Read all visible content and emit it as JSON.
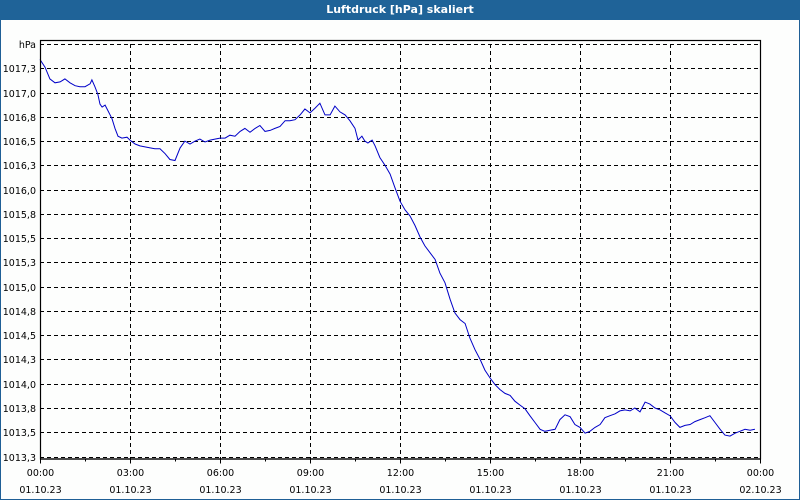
{
  "window": {
    "title": "Luftdruck [hPa] skaliert"
  },
  "colors": {
    "titlebar": "#1f6398",
    "line": "#0000c8",
    "grid": "#000000",
    "background": "#fdfefd"
  },
  "chart_data": {
    "type": "line",
    "title": "Luftdruck [hPa] skaliert",
    "xlabel": "",
    "ylabel": "hPa",
    "ylim": [
      1013.25,
      1017.5
    ],
    "xlim_hours": [
      0,
      24
    ],
    "grid": true,
    "legend": null,
    "y_ticks": [
      {
        "value": 1017.5,
        "label": "hPa"
      },
      {
        "value": 1017.25,
        "label": "1017,3"
      },
      {
        "value": 1017.0,
        "label": "1017,0"
      },
      {
        "value": 1016.75,
        "label": "1016,8"
      },
      {
        "value": 1016.5,
        "label": "1016,5"
      },
      {
        "value": 1016.25,
        "label": "1016,3"
      },
      {
        "value": 1016.0,
        "label": "1016,0"
      },
      {
        "value": 1015.75,
        "label": "1015,8"
      },
      {
        "value": 1015.5,
        "label": "1015,5"
      },
      {
        "value": 1015.25,
        "label": "1015,3"
      },
      {
        "value": 1015.0,
        "label": "1015,0"
      },
      {
        "value": 1014.75,
        "label": "1014,8"
      },
      {
        "value": 1014.5,
        "label": "1014,5"
      },
      {
        "value": 1014.25,
        "label": "1014,3"
      },
      {
        "value": 1014.0,
        "label": "1014,0"
      },
      {
        "value": 1013.75,
        "label": "1013,8"
      },
      {
        "value": 1013.5,
        "label": "1013,5"
      },
      {
        "value": 1013.25,
        "label": "1013,3"
      }
    ],
    "x_ticks": [
      {
        "hour": 0,
        "time": "00:00",
        "date": "01.10.23"
      },
      {
        "hour": 3,
        "time": "03:00",
        "date": "01.10.23"
      },
      {
        "hour": 6,
        "time": "06:00",
        "date": "01.10.23"
      },
      {
        "hour": 9,
        "time": "09:00",
        "date": "01.10.23"
      },
      {
        "hour": 12,
        "time": "12:00",
        "date": "01.10.23"
      },
      {
        "hour": 15,
        "time": "15:00",
        "date": "01.10.23"
      },
      {
        "hour": 18,
        "time": "18:00",
        "date": "01.10.23"
      },
      {
        "hour": 21,
        "time": "21:00",
        "date": "01.10.23"
      },
      {
        "hour": 24,
        "time": "00:00",
        "date": "02.10.23"
      }
    ],
    "series": [
      {
        "name": "Luftdruck",
        "unit": "hPa",
        "points": [
          [
            0.0,
            1017.34
          ],
          [
            0.17,
            1017.26
          ],
          [
            0.33,
            1017.14
          ],
          [
            0.5,
            1017.1
          ],
          [
            0.67,
            1017.11
          ],
          [
            0.83,
            1017.14
          ],
          [
            1.0,
            1017.1
          ],
          [
            1.17,
            1017.07
          ],
          [
            1.33,
            1017.06
          ],
          [
            1.5,
            1017.06
          ],
          [
            1.67,
            1017.09
          ],
          [
            1.73,
            1017.13
          ],
          [
            1.83,
            1017.06
          ],
          [
            1.93,
            1016.98
          ],
          [
            2.0,
            1016.88
          ],
          [
            2.07,
            1016.85
          ],
          [
            2.17,
            1016.87
          ],
          [
            2.27,
            1016.81
          ],
          [
            2.4,
            1016.73
          ],
          [
            2.5,
            1016.63
          ],
          [
            2.6,
            1016.55
          ],
          [
            2.73,
            1016.53
          ],
          [
            2.9,
            1016.54
          ],
          [
            3.0,
            1016.51
          ],
          [
            3.17,
            1016.47
          ],
          [
            3.33,
            1016.45
          ],
          [
            3.5,
            1016.44
          ],
          [
            3.67,
            1016.43
          ],
          [
            3.83,
            1016.42
          ],
          [
            4.0,
            1016.42
          ],
          [
            4.17,
            1016.37
          ],
          [
            4.33,
            1016.31
          ],
          [
            4.5,
            1016.3
          ],
          [
            4.67,
            1016.43
          ],
          [
            4.83,
            1016.5
          ],
          [
            5.0,
            1016.47
          ],
          [
            5.17,
            1016.5
          ],
          [
            5.33,
            1016.52
          ],
          [
            5.5,
            1016.49
          ],
          [
            5.67,
            1016.51
          ],
          [
            5.83,
            1016.52
          ],
          [
            6.0,
            1016.53
          ],
          [
            6.17,
            1016.53
          ],
          [
            6.33,
            1016.56
          ],
          [
            6.5,
            1016.55
          ],
          [
            6.67,
            1016.6
          ],
          [
            6.83,
            1016.63
          ],
          [
            7.0,
            1016.59
          ],
          [
            7.17,
            1016.63
          ],
          [
            7.33,
            1016.66
          ],
          [
            7.5,
            1016.6
          ],
          [
            7.67,
            1016.61
          ],
          [
            7.83,
            1016.63
          ],
          [
            8.0,
            1016.65
          ],
          [
            8.17,
            1016.71
          ],
          [
            8.33,
            1016.71
          ],
          [
            8.5,
            1016.72
          ],
          [
            8.67,
            1016.77
          ],
          [
            8.83,
            1016.83
          ],
          [
            9.0,
            1016.79
          ],
          [
            9.17,
            1016.84
          ],
          [
            9.33,
            1016.89
          ],
          [
            9.5,
            1016.77
          ],
          [
            9.67,
            1016.77
          ],
          [
            9.83,
            1016.86
          ],
          [
            10.0,
            1016.8
          ],
          [
            10.17,
            1016.77
          ],
          [
            10.33,
            1016.71
          ],
          [
            10.5,
            1016.63
          ],
          [
            10.6,
            1016.51
          ],
          [
            10.73,
            1016.55
          ],
          [
            10.83,
            1016.5
          ],
          [
            10.93,
            1016.48
          ],
          [
            11.07,
            1016.51
          ],
          [
            11.17,
            1016.45
          ],
          [
            11.33,
            1016.33
          ],
          [
            11.5,
            1016.25
          ],
          [
            11.67,
            1016.16
          ],
          [
            11.83,
            1016.02
          ],
          [
            12.0,
            1015.88
          ],
          [
            12.17,
            1015.79
          ],
          [
            12.33,
            1015.73
          ],
          [
            12.5,
            1015.63
          ],
          [
            12.67,
            1015.51
          ],
          [
            12.83,
            1015.42
          ],
          [
            13.0,
            1015.35
          ],
          [
            13.17,
            1015.28
          ],
          [
            13.33,
            1015.14
          ],
          [
            13.5,
            1015.04
          ],
          [
            13.67,
            1014.87
          ],
          [
            13.83,
            1014.73
          ],
          [
            14.0,
            1014.66
          ],
          [
            14.17,
            1014.62
          ],
          [
            14.33,
            1014.47
          ],
          [
            14.5,
            1014.35
          ],
          [
            14.67,
            1014.25
          ],
          [
            14.83,
            1014.14
          ],
          [
            15.0,
            1014.06
          ],
          [
            15.17,
            1013.99
          ],
          [
            15.33,
            1013.94
          ],
          [
            15.5,
            1013.9
          ],
          [
            15.67,
            1013.88
          ],
          [
            15.83,
            1013.82
          ],
          [
            16.0,
            1013.78
          ],
          [
            16.17,
            1013.74
          ],
          [
            16.33,
            1013.67
          ],
          [
            16.5,
            1013.6
          ],
          [
            16.67,
            1013.53
          ],
          [
            16.83,
            1013.51
          ],
          [
            17.0,
            1013.52
          ],
          [
            17.17,
            1013.53
          ],
          [
            17.33,
            1013.63
          ],
          [
            17.5,
            1013.68
          ],
          [
            17.67,
            1013.66
          ],
          [
            17.83,
            1013.58
          ],
          [
            18.0,
            1013.55
          ],
          [
            18.17,
            1013.49
          ],
          [
            18.33,
            1013.51
          ],
          [
            18.5,
            1013.55
          ],
          [
            18.67,
            1013.58
          ],
          [
            18.83,
            1013.65
          ],
          [
            19.0,
            1013.67
          ],
          [
            19.17,
            1013.69
          ],
          [
            19.33,
            1013.72
          ],
          [
            19.5,
            1013.73
          ],
          [
            19.67,
            1013.72
          ],
          [
            19.83,
            1013.75
          ],
          [
            20.0,
            1013.71
          ],
          [
            20.17,
            1013.81
          ],
          [
            20.33,
            1013.79
          ],
          [
            20.5,
            1013.75
          ],
          [
            20.67,
            1013.73
          ],
          [
            20.83,
            1013.7
          ],
          [
            21.0,
            1013.67
          ],
          [
            21.17,
            1013.6
          ],
          [
            21.33,
            1013.55
          ],
          [
            21.5,
            1013.57
          ],
          [
            21.67,
            1013.58
          ],
          [
            21.83,
            1013.61
          ],
          [
            22.0,
            1013.63
          ],
          [
            22.17,
            1013.65
          ],
          [
            22.33,
            1013.67
          ],
          [
            22.5,
            1013.6
          ],
          [
            22.67,
            1013.53
          ],
          [
            22.83,
            1013.47
          ],
          [
            23.0,
            1013.46
          ],
          [
            23.17,
            1013.49
          ],
          [
            23.33,
            1013.51
          ],
          [
            23.5,
            1013.53
          ],
          [
            23.67,
            1013.52
          ],
          [
            23.83,
            1013.53
          ]
        ]
      }
    ]
  }
}
